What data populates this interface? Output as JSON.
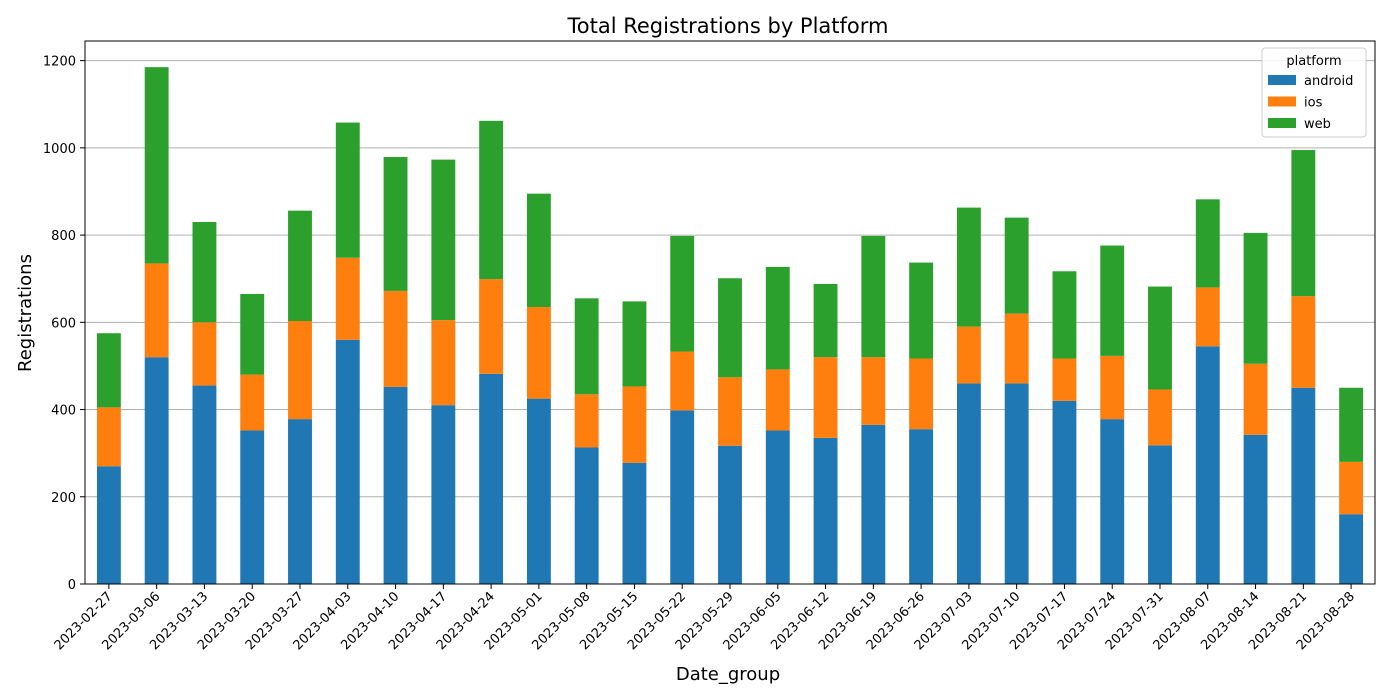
{
  "chart_data": {
    "type": "bar",
    "stacked": true,
    "title": "Total Registrations by Platform",
    "xlabel": "Date_group",
    "ylabel": "Registrations",
    "ylim": [
      0,
      1245
    ],
    "yticks": [
      0,
      200,
      400,
      600,
      800,
      1000,
      1200
    ],
    "grid": "y",
    "legend": {
      "title": "platform",
      "position": "top-right"
    },
    "categories": [
      "2023-02-27",
      "2023-03-06",
      "2023-03-13",
      "2023-03-20",
      "2023-03-27",
      "2023-04-03",
      "2023-04-10",
      "2023-04-17",
      "2023-04-24",
      "2023-05-01",
      "2023-05-08",
      "2023-05-15",
      "2023-05-22",
      "2023-05-29",
      "2023-06-05",
      "2023-06-12",
      "2023-06-19",
      "2023-06-26",
      "2023-07-03",
      "2023-07-10",
      "2023-07-17",
      "2023-07-24",
      "2023-07-31",
      "2023-08-07",
      "2023-08-14",
      "2023-08-21",
      "2023-08-28"
    ],
    "series": [
      {
        "name": "android",
        "color": "#1f77b4",
        "values": [
          270,
          520,
          455,
          352,
          378,
          560,
          452,
          410,
          482,
          425,
          313,
          278,
          398,
          317,
          352,
          335,
          365,
          355,
          460,
          460,
          420,
          378,
          318,
          545,
          342,
          450,
          160
        ]
      },
      {
        "name": "ios",
        "color": "#ff7f0e",
        "values": [
          135,
          215,
          145,
          128,
          225,
          188,
          220,
          195,
          217,
          210,
          122,
          175,
          135,
          157,
          140,
          185,
          155,
          162,
          130,
          160,
          97,
          145,
          128,
          135,
          163,
          210,
          120
        ]
      },
      {
        "name": "web",
        "color": "#2ca02c",
        "values": [
          170,
          450,
          230,
          185,
          253,
          310,
          307,
          368,
          363,
          260,
          220,
          195,
          265,
          227,
          235,
          168,
          278,
          220,
          273,
          220,
          200,
          253,
          236,
          202,
          300,
          335,
          170
        ]
      }
    ]
  }
}
